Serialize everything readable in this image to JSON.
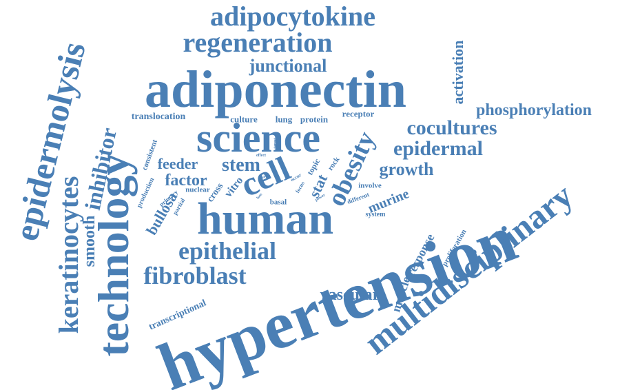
{
  "color": "#4a7fb5",
  "words": [
    {
      "text": "hypertension"
    },
    {
      "text": "adiponectin"
    },
    {
      "text": "human"
    },
    {
      "text": "science"
    },
    {
      "text": "technology"
    },
    {
      "text": "multidisciplinary"
    },
    {
      "text": "epidermolysis"
    },
    {
      "text": "adipocytokine"
    },
    {
      "text": "regeneration"
    },
    {
      "text": "keratinocytes"
    },
    {
      "text": "epithelial"
    },
    {
      "text": "fibroblast"
    },
    {
      "text": "cell"
    },
    {
      "text": "obesity"
    },
    {
      "text": "cocultures"
    },
    {
      "text": "phosphorylation"
    },
    {
      "text": "epidermal"
    },
    {
      "text": "junctional"
    },
    {
      "text": "inhibitor"
    },
    {
      "text": "growth"
    },
    {
      "text": "stem"
    },
    {
      "text": "factor"
    },
    {
      "text": "feeder"
    },
    {
      "text": "vascular"
    },
    {
      "text": "activation"
    },
    {
      "text": "smooth"
    },
    {
      "text": "bullosa"
    },
    {
      "text": "murine"
    },
    {
      "text": "stat"
    },
    {
      "text": "muscle"
    },
    {
      "text": "response"
    },
    {
      "text": "translocation"
    },
    {
      "text": "culture"
    },
    {
      "text": "lung"
    },
    {
      "text": "protein"
    },
    {
      "text": "receptor"
    },
    {
      "text": "transcriptional"
    },
    {
      "text": "proliferation"
    },
    {
      "text": "cross"
    },
    {
      "text": "vitro"
    },
    {
      "text": "consistent"
    },
    {
      "text": "nuclear"
    },
    {
      "text": "production"
    },
    {
      "text": "primary"
    },
    {
      "text": "partial"
    },
    {
      "text": "basal"
    },
    {
      "text": "involve"
    },
    {
      "text": "different"
    },
    {
      "text": "system"
    },
    {
      "text": "topic"
    },
    {
      "text": "rock"
    },
    {
      "text": "focus"
    },
    {
      "text": "occur"
    },
    {
      "text": "talk"
    },
    {
      "text": "effect"
    },
    {
      "text": "target"
    },
    {
      "text": "power"
    },
    {
      "text": "loss"
    }
  ]
}
